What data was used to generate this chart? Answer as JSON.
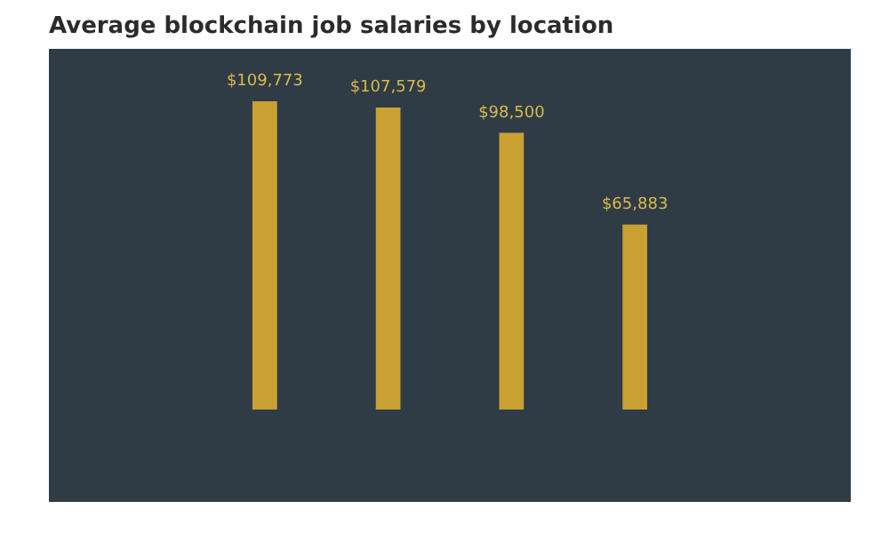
{
  "chart_data": {
    "type": "bar",
    "title": "Average blockchain job salaries by location",
    "categories": [
      null,
      null,
      null,
      null
    ],
    "values": [
      109773,
      107579,
      98500,
      65883
    ],
    "value_labels": [
      "$109,773",
      "$107,579",
      "$98,500",
      "$65,883"
    ],
    "color": "#c9a032",
    "grid": false
  }
}
